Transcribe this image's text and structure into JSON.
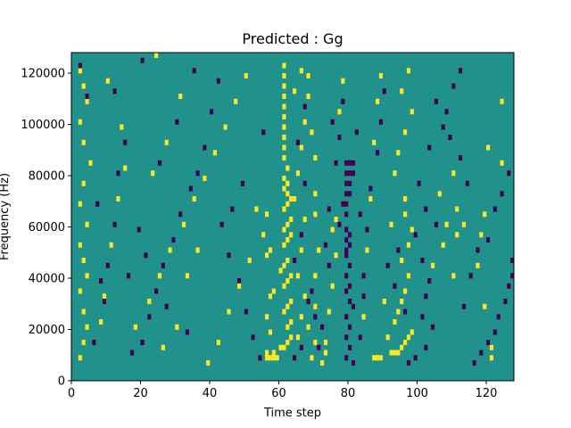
{
  "chart_data": {
    "type": "heatmap",
    "title": "Predicted : Gg",
    "xlabel": "Time step",
    "ylabel": "Frequency (Hz)",
    "xlim": [
      0,
      128
    ],
    "ylim": [
      0,
      128000
    ],
    "x_ticks": [
      0,
      20,
      40,
      60,
      80,
      100,
      120
    ],
    "x_tick_labels": [
      "0",
      "20",
      "40",
      "60",
      "80",
      "100",
      "120"
    ],
    "y_ticks": [
      0,
      20000,
      40000,
      60000,
      80000,
      100000,
      120000
    ],
    "y_tick_labels": [
      "0",
      "20000",
      "40000",
      "60000",
      "80000",
      "100000",
      "120000"
    ],
    "grid": false,
    "legend": "none",
    "colormap": "viridis",
    "value_levels": [
      0,
      1,
      2
    ],
    "colors": {
      "0": "#440154",
      "1": "#21918c",
      "2": "#fde725"
    },
    "background_level": 1,
    "cell_width": 1,
    "cell_height": 2000,
    "cells": [
      [
        56,
        8000,
        2
      ],
      [
        57,
        8000,
        2
      ],
      [
        58,
        8000,
        2
      ],
      [
        59,
        8000,
        2
      ],
      [
        56,
        10000,
        2
      ],
      [
        58,
        10000,
        2
      ],
      [
        60,
        12000,
        2
      ],
      [
        61,
        12000,
        2
      ],
      [
        62,
        14000,
        2
      ],
      [
        63,
        16000,
        2
      ],
      [
        57,
        18000,
        2
      ],
      [
        62,
        20000,
        2
      ],
      [
        63,
        22000,
        2
      ],
      [
        56,
        24000,
        2
      ],
      [
        61,
        26000,
        2
      ],
      [
        62,
        28000,
        2
      ],
      [
        63,
        30000,
        2
      ],
      [
        57,
        32000,
        2
      ],
      [
        58,
        34000,
        2
      ],
      [
        61,
        36000,
        2
      ],
      [
        62,
        38000,
        2
      ],
      [
        63,
        40000,
        2
      ],
      [
        60,
        42000,
        2
      ],
      [
        61,
        44000,
        2
      ],
      [
        62,
        46000,
        2
      ],
      [
        56,
        48000,
        2
      ],
      [
        57,
        50000,
        2
      ],
      [
        61,
        52000,
        2
      ],
      [
        62,
        54000,
        2
      ],
      [
        63,
        56000,
        2
      ],
      [
        61,
        58000,
        2
      ],
      [
        62,
        60000,
        2
      ],
      [
        63,
        62000,
        2
      ],
      [
        56,
        64000,
        2
      ],
      [
        61,
        66000,
        2
      ],
      [
        62,
        68000,
        2
      ],
      [
        63,
        70000,
        2
      ],
      [
        62,
        72000,
        2
      ],
      [
        61,
        74000,
        2
      ],
      [
        62,
        76000,
        2
      ],
      [
        61,
        78000,
        2
      ],
      [
        62,
        82000,
        2
      ],
      [
        61,
        86000,
        2
      ],
      [
        61,
        90000,
        2
      ],
      [
        61,
        94000,
        2
      ],
      [
        61,
        98000,
        2
      ],
      [
        61,
        102000,
        2
      ],
      [
        61,
        106000,
        2
      ],
      [
        61,
        110000,
        2
      ],
      [
        61,
        114000,
        2
      ],
      [
        61,
        118000,
        2
      ],
      [
        61,
        122000,
        2
      ],
      [
        69,
        8000,
        2
      ],
      [
        73,
        10000,
        2
      ],
      [
        70,
        14000,
        2
      ],
      [
        68,
        20000,
        2
      ],
      [
        70,
        28000,
        2
      ],
      [
        70,
        40000,
        2
      ],
      [
        71,
        50000,
        2
      ],
      [
        70,
        64000,
        2
      ],
      [
        75,
        58000,
        2
      ],
      [
        76,
        62000,
        2
      ],
      [
        70,
        72000,
        2
      ],
      [
        70,
        86000,
        2
      ],
      [
        69,
        96000,
        2
      ],
      [
        68,
        110000,
        2
      ],
      [
        68,
        118000,
        2
      ],
      [
        79,
        84000,
        0
      ],
      [
        80,
        84000,
        0
      ],
      [
        81,
        84000,
        0
      ],
      [
        79,
        80000,
        0
      ],
      [
        80,
        80000,
        0
      ],
      [
        81,
        80000,
        0
      ],
      [
        79,
        76000,
        0
      ],
      [
        80,
        76000,
        0
      ],
      [
        79,
        72000,
        0
      ],
      [
        80,
        72000,
        0
      ],
      [
        79,
        68000,
        0
      ],
      [
        79,
        64000,
        0
      ],
      [
        79,
        58000,
        0
      ],
      [
        80,
        56000,
        0
      ],
      [
        79,
        54000,
        0
      ],
      [
        80,
        52000,
        0
      ],
      [
        79,
        50000,
        0
      ],
      [
        79,
        48000,
        0
      ],
      [
        80,
        44000,
        0
      ],
      [
        79,
        40000,
        0
      ],
      [
        80,
        36000,
        0
      ],
      [
        79,
        34000,
        0
      ],
      [
        80,
        30000,
        0
      ],
      [
        81,
        28000,
        0
      ],
      [
        79,
        24000,
        0
      ],
      [
        80,
        20000,
        0
      ],
      [
        79,
        16000,
        0
      ],
      [
        80,
        12000,
        0
      ],
      [
        79,
        8000,
        0
      ],
      [
        81,
        6000,
        0
      ],
      [
        77,
        60000,
        0
      ],
      [
        78,
        68000,
        0
      ],
      [
        83,
        64000,
        0
      ],
      [
        82,
        96000,
        0
      ],
      [
        84,
        40000,
        0
      ],
      [
        69,
        34000,
        0
      ],
      [
        70,
        24000,
        0
      ],
      [
        71,
        12000,
        0
      ],
      [
        74,
        44000,
        0
      ],
      [
        75,
        100000,
        0
      ],
      [
        87,
        8000,
        2
      ],
      [
        88,
        8000,
        2
      ],
      [
        89,
        8000,
        2
      ],
      [
        92,
        10000,
        2
      ],
      [
        93,
        10000,
        2
      ],
      [
        94,
        10000,
        2
      ],
      [
        95,
        12000,
        2
      ],
      [
        96,
        14000,
        2
      ],
      [
        97,
        16000,
        2
      ],
      [
        98,
        18000,
        2
      ],
      [
        93,
        22000,
        2
      ],
      [
        94,
        26000,
        2
      ],
      [
        95,
        30000,
        2
      ],
      [
        96,
        34000,
        2
      ],
      [
        97,
        40000,
        2
      ],
      [
        95,
        46000,
        2
      ],
      [
        97,
        52000,
        2
      ],
      [
        98,
        58000,
        2
      ],
      [
        96,
        64000,
        2
      ],
      [
        96,
        70000,
        2
      ],
      [
        93,
        80000,
        2
      ],
      [
        94,
        88000,
        2
      ],
      [
        96,
        96000,
        2
      ],
      [
        98,
        104000,
        2
      ],
      [
        95,
        112000,
        2
      ],
      [
        97,
        120000,
        2
      ],
      [
        104,
        44000,
        2
      ],
      [
        110,
        40000,
        2
      ],
      [
        107,
        52000,
        2
      ],
      [
        111,
        56000,
        2
      ],
      [
        108,
        60000,
        2
      ],
      [
        111,
        66000,
        2
      ],
      [
        113,
        60000,
        2
      ],
      [
        110,
        80000,
        2
      ],
      [
        118,
        56000,
        2
      ],
      [
        117,
        44000,
        2
      ],
      [
        119,
        28000,
        2
      ],
      [
        121,
        12000,
        2
      ],
      [
        121,
        8000,
        2
      ],
      [
        120,
        90000,
        2
      ],
      [
        124,
        84000,
        2
      ],
      [
        124,
        108000,
        2
      ],
      [
        119,
        64000,
        2
      ],
      [
        106,
        72000,
        2
      ],
      [
        99,
        8000,
        0
      ],
      [
        102,
        12000,
        0
      ],
      [
        104,
        20000,
        0
      ],
      [
        101,
        24000,
        0
      ],
      [
        102,
        32000,
        0
      ],
      [
        103,
        38000,
        0
      ],
      [
        101,
        46000,
        0
      ],
      [
        99,
        56000,
        0
      ],
      [
        105,
        60000,
        0
      ],
      [
        102,
        66000,
        0
      ],
      [
        100,
        76000,
        0
      ],
      [
        103,
        90000,
        0
      ],
      [
        108,
        104000,
        0
      ],
      [
        110,
        114000,
        0
      ],
      [
        112,
        120000,
        0
      ],
      [
        113,
        28000,
        0
      ],
      [
        115,
        40000,
        0
      ],
      [
        117,
        50000,
        0
      ],
      [
        120,
        54000,
        0
      ],
      [
        122,
        66000,
        0
      ],
      [
        124,
        72000,
        0
      ],
      [
        126,
        80000,
        0
      ],
      [
        127,
        46000,
        0
      ],
      [
        127,
        40000,
        0
      ],
      [
        126,
        36000,
        0
      ],
      [
        125,
        30000,
        0
      ],
      [
        123,
        24000,
        0
      ],
      [
        122,
        18000,
        0
      ],
      [
        120,
        14000,
        0
      ],
      [
        118,
        10000,
        0
      ],
      [
        116,
        6000,
        0
      ],
      [
        114,
        76000,
        0
      ],
      [
        112,
        86000,
        0
      ],
      [
        109,
        94000,
        0
      ],
      [
        107,
        98000,
        0
      ],
      [
        105,
        108000,
        0
      ],
      [
        2,
        8000,
        2
      ],
      [
        3,
        14000,
        2
      ],
      [
        4,
        20000,
        2
      ],
      [
        3,
        26000,
        2
      ],
      [
        2,
        34000,
        2
      ],
      [
        4,
        40000,
        2
      ],
      [
        3,
        46000,
        2
      ],
      [
        2,
        52000,
        2
      ],
      [
        4,
        60000,
        2
      ],
      [
        2,
        68000,
        2
      ],
      [
        3,
        76000,
        2
      ],
      [
        5,
        84000,
        2
      ],
      [
        3,
        92000,
        2
      ],
      [
        2,
        100000,
        2
      ],
      [
        4,
        108000,
        2
      ],
      [
        3,
        114000,
        2
      ],
      [
        2,
        120000,
        2
      ],
      [
        8,
        22000,
        2
      ],
      [
        9,
        32000,
        2
      ],
      [
        11,
        52000,
        2
      ],
      [
        13,
        70000,
        2
      ],
      [
        15,
        82000,
        2
      ],
      [
        14,
        98000,
        2
      ],
      [
        10,
        116000,
        2
      ],
      [
        6,
        14000,
        0
      ],
      [
        9,
        30000,
        0
      ],
      [
        10,
        44000,
        0
      ],
      [
        12,
        60000,
        0
      ],
      [
        13,
        80000,
        0
      ],
      [
        15,
        92000,
        0
      ],
      [
        12,
        112000,
        0
      ],
      [
        7,
        68000,
        0
      ],
      [
        8,
        38000,
        0
      ],
      [
        4,
        110000,
        0
      ],
      [
        2,
        122000,
        0
      ],
      [
        17,
        10000,
        0
      ],
      [
        16,
        40000,
        0
      ],
      [
        20,
        14000,
        0
      ],
      [
        22,
        24000,
        0
      ],
      [
        24,
        34000,
        0
      ],
      [
        26,
        44000,
        0
      ],
      [
        29,
        54000,
        0
      ],
      [
        31,
        64000,
        0
      ],
      [
        34,
        74000,
        0
      ],
      [
        36,
        80000,
        0
      ],
      [
        38,
        90000,
        0
      ],
      [
        40,
        104000,
        0
      ],
      [
        42,
        116000,
        0
      ],
      [
        43,
        60000,
        0
      ],
      [
        45,
        48000,
        0
      ],
      [
        48,
        38000,
        0
      ],
      [
        50,
        26000,
        0
      ],
      [
        52,
        16000,
        0
      ],
      [
        54,
        8000,
        0
      ],
      [
        55,
        96000,
        0
      ],
      [
        49,
        76000,
        0
      ],
      [
        46,
        66000,
        0
      ],
      [
        33,
        18000,
        0
      ],
      [
        27,
        28000,
        0
      ],
      [
        21,
        48000,
        0
      ],
      [
        19,
        58000,
        0
      ],
      [
        25,
        84000,
        0
      ],
      [
        30,
        100000,
        0
      ],
      [
        35,
        120000,
        0
      ],
      [
        20,
        124000,
        0
      ],
      [
        18,
        20000,
        2
      ],
      [
        22,
        30000,
        2
      ],
      [
        25,
        40000,
        2
      ],
      [
        28,
        50000,
        2
      ],
      [
        32,
        60000,
        2
      ],
      [
        35,
        70000,
        2
      ],
      [
        38,
        78000,
        2
      ],
      [
        41,
        88000,
        2
      ],
      [
        44,
        98000,
        2
      ],
      [
        47,
        108000,
        2
      ],
      [
        50,
        118000,
        2
      ],
      [
        53,
        66000,
        2
      ],
      [
        55,
        56000,
        2
      ],
      [
        51,
        46000,
        2
      ],
      [
        48,
        36000,
        2
      ],
      [
        45,
        26000,
        2
      ],
      [
        42,
        14000,
        2
      ],
      [
        39,
        6000,
        2
      ],
      [
        36,
        50000,
        2
      ],
      [
        33,
        40000,
        2
      ],
      [
        30,
        20000,
        2
      ],
      [
        26,
        12000,
        2
      ],
      [
        23,
        80000,
        2
      ],
      [
        27,
        92000,
        2
      ],
      [
        31,
        110000,
        2
      ],
      [
        24,
        126000,
        2
      ],
      [
        65,
        40000,
        2
      ],
      [
        66,
        50000,
        2
      ],
      [
        67,
        62000,
        2
      ],
      [
        64,
        70000,
        2
      ],
      [
        65,
        80000,
        2
      ],
      [
        66,
        90000,
        2
      ],
      [
        67,
        100000,
        2
      ],
      [
        64,
        112000,
        2
      ],
      [
        66,
        120000,
        2
      ],
      [
        65,
        16000,
        2
      ],
      [
        66,
        24000,
        2
      ],
      [
        67,
        32000,
        2
      ],
      [
        72,
        6000,
        2
      ],
      [
        73,
        14000,
        2
      ],
      [
        74,
        26000,
        2
      ],
      [
        75,
        36000,
        2
      ],
      [
        76,
        48000,
        2
      ],
      [
        77,
        104000,
        2
      ],
      [
        78,
        116000,
        2
      ],
      [
        84,
        24000,
        2
      ],
      [
        85,
        50000,
        2
      ],
      [
        86,
        70000,
        2
      ],
      [
        87,
        92000,
        2
      ],
      [
        88,
        108000,
        2
      ],
      [
        89,
        118000,
        2
      ],
      [
        90,
        30000,
        2
      ],
      [
        91,
        16000,
        2
      ],
      [
        92,
        60000,
        2
      ],
      [
        64,
        8000,
        0
      ],
      [
        66,
        12000,
        0
      ],
      [
        68,
        30000,
        0
      ],
      [
        64,
        46000,
        0
      ],
      [
        66,
        56000,
        0
      ],
      [
        67,
        76000,
        0
      ],
      [
        65,
        92000,
        0
      ],
      [
        67,
        106000,
        0
      ],
      [
        72,
        20000,
        0
      ],
      [
        73,
        52000,
        0
      ],
      [
        74,
        66000,
        0
      ],
      [
        76,
        84000,
        0
      ],
      [
        77,
        94000,
        0
      ],
      [
        78,
        108000,
        0
      ],
      [
        83,
        16000,
        0
      ],
      [
        84,
        32000,
        0
      ],
      [
        85,
        58000,
        0
      ],
      [
        86,
        74000,
        0
      ],
      [
        88,
        88000,
        0
      ],
      [
        89,
        100000,
        0
      ],
      [
        90,
        112000,
        0
      ],
      [
        91,
        44000,
        0
      ],
      [
        93,
        36000,
        0
      ],
      [
        94,
        50000,
        0
      ],
      [
        96,
        26000,
        0
      ],
      [
        97,
        6000,
        0
      ]
    ]
  }
}
